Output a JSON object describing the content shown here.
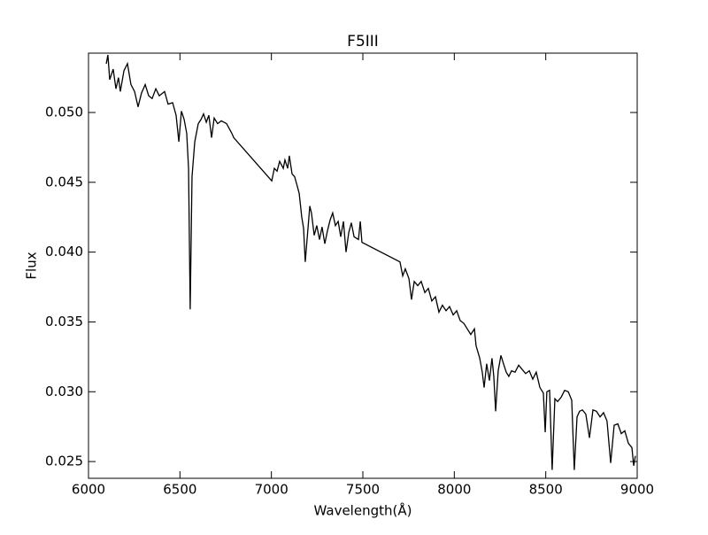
{
  "chart_data": {
    "type": "line",
    "title": "F5III",
    "x_label": "Wavelength(Å)",
    "y_label": "Flux",
    "x": [
      6097,
      6106,
      6116,
      6135,
      6150,
      6164,
      6174,
      6194,
      6213,
      6232,
      6252,
      6271,
      6290,
      6310,
      6329,
      6348,
      6368,
      6387,
      6416,
      6435,
      6460,
      6479,
      6494,
      6508,
      6523,
      6537,
      6547,
      6556,
      6566,
      6581,
      6600,
      6615,
      6629,
      6644,
      6658,
      6673,
      6687,
      6706,
      6726,
      6755,
      6784,
      6794,
      7002,
      7016,
      7031,
      7045,
      7065,
      7074,
      7089,
      7098,
      7113,
      7127,
      7142,
      7152,
      7166,
      7176,
      7185,
      7195,
      7210,
      7219,
      7234,
      7248,
      7263,
      7277,
      7292,
      7306,
      7321,
      7335,
      7350,
      7365,
      7379,
      7394,
      7408,
      7423,
      7437,
      7452,
      7476,
      7486,
      7495,
      7703,
      7718,
      7732,
      7752,
      7766,
      7781,
      7800,
      7819,
      7839,
      7858,
      7877,
      7897,
      7916,
      7935,
      7955,
      7974,
      7994,
      8013,
      8032,
      8052,
      8071,
      8090,
      8110,
      8119,
      8139,
      8153,
      8163,
      8177,
      8192,
      8206,
      8216,
      8226,
      8240,
      8255,
      8269,
      8284,
      8298,
      8313,
      8332,
      8352,
      8371,
      8390,
      8410,
      8429,
      8448,
      8468,
      8487,
      8497,
      8506,
      8521,
      8535,
      8550,
      8565,
      8584,
      8603,
      8623,
      8642,
      8656,
      8671,
      8685,
      8700,
      8719,
      8739,
      8758,
      8777,
      8797,
      8816,
      8835,
      8855,
      8874,
      8894,
      8913,
      8932,
      8952,
      8971,
      8981,
      8990
    ],
    "series": [
      {
        "color": "#000000",
        "values": [
          0.05349,
          0.05412,
          0.05235,
          0.0531,
          0.0517,
          0.0525,
          0.0515,
          0.053,
          0.0535,
          0.052,
          0.0515,
          0.0504,
          0.0514,
          0.052,
          0.0512,
          0.051,
          0.0517,
          0.0512,
          0.0515,
          0.0506,
          0.0507,
          0.0498,
          0.0479,
          0.0501,
          0.0495,
          0.0485,
          0.046,
          0.0359,
          0.0454,
          0.0479,
          0.0492,
          0.0495,
          0.0499,
          0.0493,
          0.0498,
          0.0482,
          0.0496,
          0.0492,
          0.0494,
          0.0492,
          0.0485,
          0.0482,
          0.0451,
          0.046,
          0.0458,
          0.0465,
          0.046,
          0.0466,
          0.046,
          0.0469,
          0.0456,
          0.0454,
          0.0447,
          0.0442,
          0.0425,
          0.0417,
          0.0393,
          0.0409,
          0.0433,
          0.0428,
          0.0412,
          0.0419,
          0.0409,
          0.0418,
          0.0406,
          0.0415,
          0.0423,
          0.0428,
          0.0419,
          0.0422,
          0.0411,
          0.0422,
          0.04,
          0.0414,
          0.0421,
          0.0411,
          0.0409,
          0.0422,
          0.0407,
          0.0393,
          0.0383,
          0.0388,
          0.0381,
          0.0366,
          0.0379,
          0.0376,
          0.0379,
          0.0371,
          0.0374,
          0.0365,
          0.0368,
          0.0357,
          0.0362,
          0.0358,
          0.0361,
          0.0355,
          0.0358,
          0.0351,
          0.0349,
          0.0345,
          0.0341,
          0.0345,
          0.0333,
          0.0324,
          0.0314,
          0.0303,
          0.032,
          0.0308,
          0.0324,
          0.0311,
          0.0286,
          0.0315,
          0.0326,
          0.032,
          0.0314,
          0.0311,
          0.0315,
          0.0314,
          0.0319,
          0.0316,
          0.0313,
          0.0315,
          0.0309,
          0.0314,
          0.0303,
          0.0299,
          0.0271,
          0.03,
          0.0301,
          0.0244,
          0.0295,
          0.0293,
          0.0296,
          0.0301,
          0.03,
          0.0294,
          0.0244,
          0.0282,
          0.0286,
          0.0287,
          0.0284,
          0.0267,
          0.0287,
          0.0286,
          0.0282,
          0.0285,
          0.0279,
          0.0249,
          0.0276,
          0.0277,
          0.027,
          0.0272,
          0.0263,
          0.026,
          0.0247,
          0.0254
        ]
      }
    ],
    "xlim": [
      6000,
      9000
    ],
    "xticks": [
      6000,
      6500,
      7000,
      7500,
      8000,
      8500,
      9000
    ],
    "ylim": [
      0.0238,
      0.05425
    ],
    "yticks": [
      0.025,
      {
        "value": 0.03,
        "label": "0.030"
      },
      0.035,
      {
        "value": 0.04,
        "label": "0.040"
      },
      0.045,
      {
        "value": 0.05,
        "label": "0.050"
      }
    ]
  }
}
